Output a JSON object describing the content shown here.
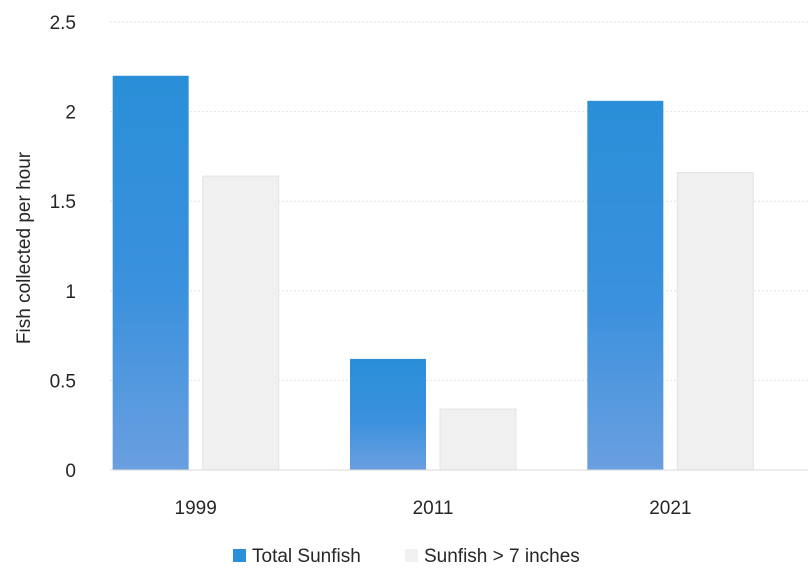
{
  "chart_data": {
    "type": "bar",
    "title": "",
    "xlabel": "",
    "ylabel": "Fish collected per hour",
    "categories": [
      "1999",
      "2011",
      "2021"
    ],
    "series": [
      {
        "name": "Total Sunfish",
        "values": [
          2.2,
          0.62,
          2.06
        ],
        "color": "#2a8fd8"
      },
      {
        "name": "Sunfish > 7 inches",
        "values": [
          1.64,
          0.34,
          1.66
        ],
        "color": "#f0f0f0"
      }
    ],
    "ylim": [
      0,
      2.5
    ],
    "yticks": [
      "0",
      "0.5",
      "1",
      "1.5",
      "2",
      "2.5"
    ],
    "grid": true,
    "legend_position": "bottom"
  }
}
